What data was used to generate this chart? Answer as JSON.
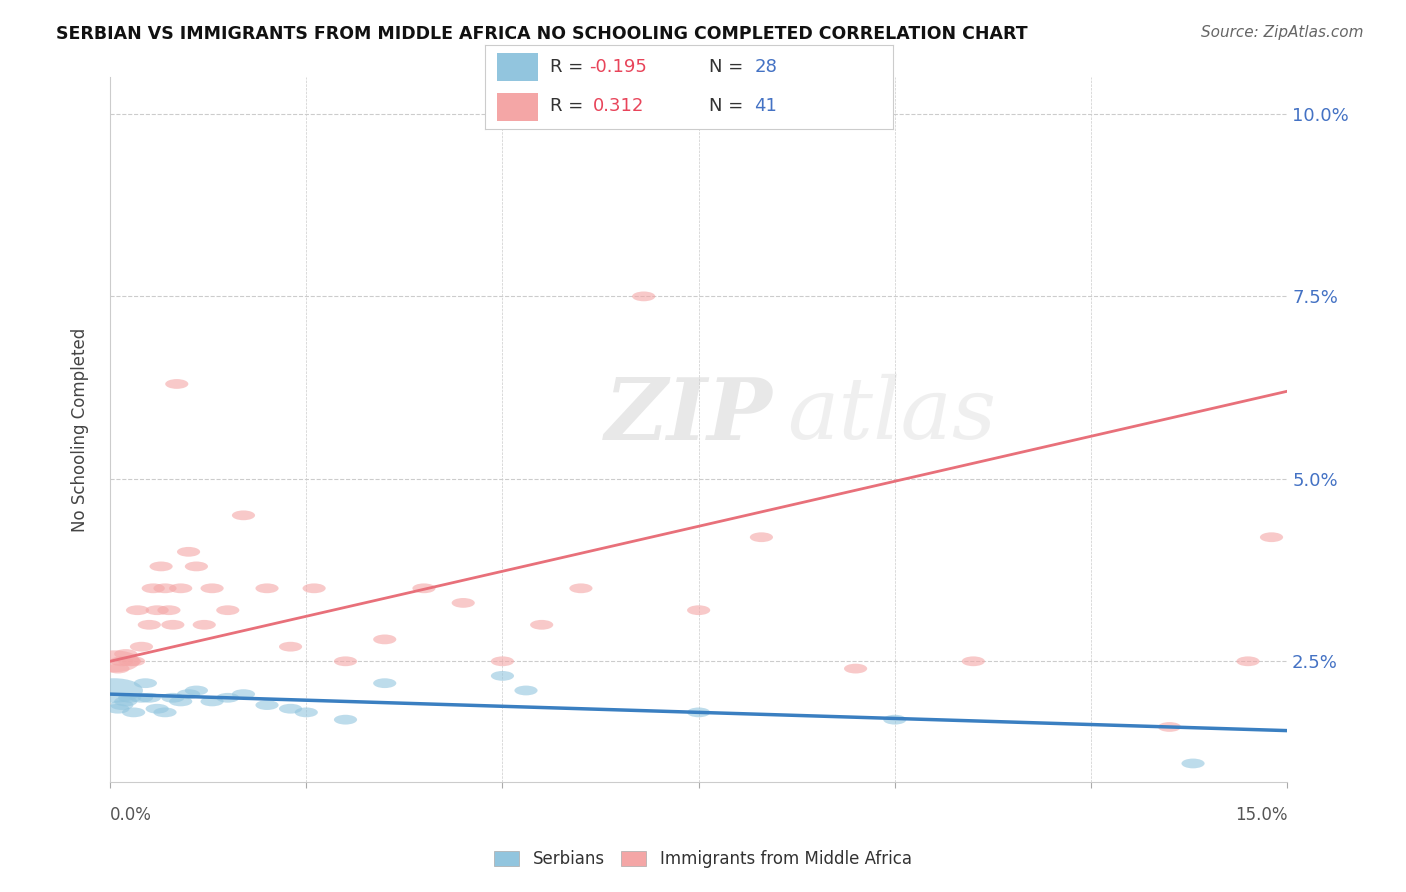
{
  "title": "SERBIAN VS IMMIGRANTS FROM MIDDLE AFRICA NO SCHOOLING COMPLETED CORRELATION CHART",
  "source": "Source: ZipAtlas.com",
  "ylabel": "No Schooling Completed",
  "xlim": [
    0.0,
    15.0
  ],
  "ylim": [
    0.85,
    10.5
  ],
  "yticks": [
    2.5,
    5.0,
    7.5,
    10.0
  ],
  "xticks": [
    0.0,
    2.5,
    5.0,
    7.5,
    10.0,
    12.5,
    15.0
  ],
  "R_serbian": -0.195,
  "N_serbian": 28,
  "R_middle_africa": 0.312,
  "N_middle_africa": 41,
  "color_serbian": "#92c5de",
  "color_middle_africa": "#f4a6a6",
  "color_trend_serbian": "#3a7fc1",
  "color_trend_africa": "#e8707a",
  "serbian_trend_y0": 2.05,
  "serbian_trend_y1": 1.55,
  "africa_trend_y0": 2.5,
  "africa_trend_y1": 6.2,
  "serbian_x": [
    0.05,
    0.1,
    0.15,
    0.2,
    0.25,
    0.3,
    0.4,
    0.45,
    0.5,
    0.6,
    0.7,
    0.8,
    0.9,
    1.0,
    1.1,
    1.3,
    1.5,
    1.7,
    2.0,
    2.3,
    2.5,
    3.0,
    3.5,
    5.0,
    5.3,
    7.5,
    10.0,
    13.8
  ],
  "serbian_y": [
    2.1,
    1.85,
    1.9,
    1.95,
    2.0,
    1.8,
    2.0,
    2.2,
    2.0,
    1.85,
    1.8,
    2.0,
    1.95,
    2.05,
    2.1,
    1.95,
    2.0,
    2.05,
    1.9,
    1.85,
    1.8,
    1.7,
    2.2,
    2.3,
    2.1,
    1.8,
    1.7,
    1.1
  ],
  "serbian_size": [
    500,
    80,
    80,
    80,
    80,
    80,
    80,
    80,
    80,
    80,
    80,
    80,
    80,
    80,
    80,
    80,
    80,
    80,
    80,
    80,
    80,
    80,
    80,
    80,
    80,
    80,
    80,
    80
  ],
  "africa_x": [
    0.05,
    0.1,
    0.15,
    0.2,
    0.25,
    0.3,
    0.35,
    0.4,
    0.5,
    0.55,
    0.6,
    0.65,
    0.7,
    0.75,
    0.8,
    0.85,
    0.9,
    1.0,
    1.1,
    1.2,
    1.3,
    1.5,
    1.7,
    2.0,
    2.3,
    2.6,
    3.0,
    3.5,
    4.0,
    4.5,
    5.0,
    5.5,
    6.0,
    6.8,
    7.5,
    8.3,
    9.5,
    11.0,
    13.5,
    14.5,
    14.8
  ],
  "africa_y": [
    2.5,
    2.4,
    2.5,
    2.6,
    2.5,
    2.5,
    3.2,
    2.7,
    3.0,
    3.5,
    3.2,
    3.8,
    3.5,
    3.2,
    3.0,
    6.3,
    3.5,
    4.0,
    3.8,
    3.0,
    3.5,
    3.2,
    4.5,
    3.5,
    2.7,
    3.5,
    2.5,
    2.8,
    3.5,
    3.3,
    2.5,
    3.0,
    3.5,
    7.5,
    3.2,
    4.2,
    2.4,
    2.5,
    1.6,
    2.5,
    4.2
  ],
  "africa_size": [
    400,
    80,
    80,
    80,
    80,
    80,
    80,
    80,
    80,
    80,
    80,
    80,
    80,
    80,
    80,
    80,
    80,
    80,
    80,
    80,
    80,
    80,
    80,
    80,
    80,
    80,
    80,
    80,
    80,
    80,
    80,
    80,
    80,
    80,
    80,
    80,
    80,
    80,
    80,
    80,
    80
  ],
  "legend_R_color": "#e8445a",
  "legend_N_color": "#4472c4",
  "legend_label_color": "#4472c4"
}
